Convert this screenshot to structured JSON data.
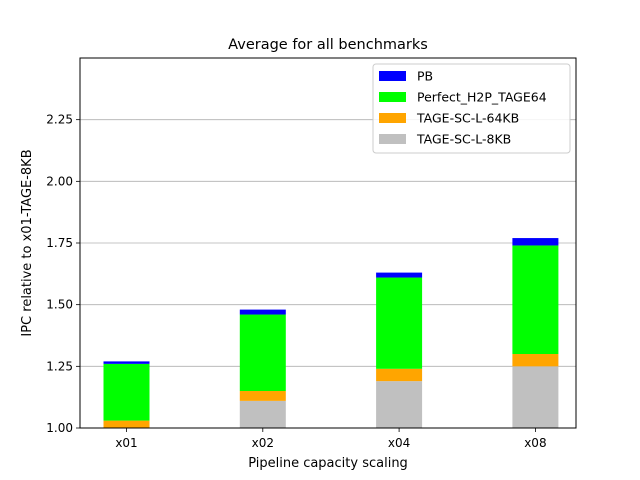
{
  "chart_data": {
    "type": "bar",
    "stacked": true,
    "title": "Average for all benchmarks",
    "xlabel": "Pipeline capacity scaling",
    "ylabel": "IPC relative to x01-TAGE-8KB",
    "categories": [
      "x01",
      "x02",
      "x04",
      "x08"
    ],
    "ylim": [
      1.0,
      2.5
    ],
    "yticks": [
      1.0,
      1.25,
      1.5,
      1.75,
      2.0,
      2.25
    ],
    "ytick_labels": [
      "1.00",
      "1.25",
      "1.50",
      "1.75",
      "2.00",
      "2.25"
    ],
    "grid": "y",
    "legend_position": "top-right",
    "series": [
      {
        "name": "TAGE-SC-L-8KB",
        "color": "#c0c0c0",
        "totals": [
          1.0,
          1.11,
          1.19,
          1.25
        ]
      },
      {
        "name": "TAGE-SC-L-64KB",
        "color": "#ffa500",
        "totals": [
          1.03,
          1.15,
          1.24,
          1.3
        ]
      },
      {
        "name": "Perfect_H2P_TAGE64",
        "color": "#00ff00",
        "totals": [
          1.26,
          1.46,
          1.61,
          1.74
        ]
      },
      {
        "name": "PB",
        "color": "#0000ff",
        "totals": [
          1.27,
          1.48,
          1.63,
          1.77
        ]
      }
    ],
    "legend_order": [
      "PB",
      "Perfect_H2P_TAGE64",
      "TAGE-SC-L-64KB",
      "TAGE-SC-L-8KB"
    ]
  }
}
